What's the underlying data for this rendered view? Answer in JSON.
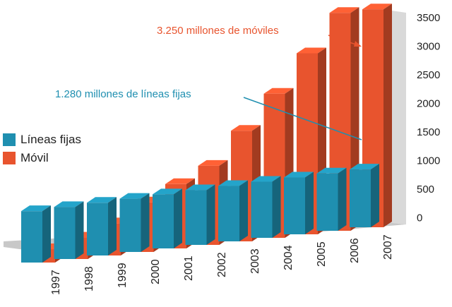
{
  "colors": {
    "fixed": "#1f8fb0",
    "mobile": "#e8542e",
    "wall": "#d9d9d9"
  },
  "legend": [
    {
      "label": "Líneas fijas",
      "color": "#1f8fb0"
    },
    {
      "label": "Móvil",
      "color": "#e8542e"
    }
  ],
  "annotations": {
    "mobile": "3.250 millones de móviles",
    "fixed": "1.280 millones de líneas fijas"
  },
  "chart_data": {
    "type": "bar",
    "categories": [
      "1997",
      "1998",
      "1999",
      "2000",
      "2001",
      "2002",
      "2003",
      "2004",
      "2005",
      "2006",
      "2007"
    ],
    "series": [
      {
        "name": "Líneas fijas",
        "values": [
          750,
          800,
          860,
          900,
          970,
          1020,
          1080,
          1140,
          1200,
          1240,
          1280
        ]
      },
      {
        "name": "Móvil",
        "values": [
          200,
          320,
          480,
          740,
          960,
          1180,
          1650,
          2150,
          2700,
          3250,
          3250
        ]
      }
    ],
    "yticks": [
      "3500",
      "3000",
      "2500",
      "2000",
      "1500",
      "1000",
      "500",
      "0"
    ],
    "ylim": [
      0,
      3500
    ],
    "grid": false,
    "legend_position": "left"
  }
}
